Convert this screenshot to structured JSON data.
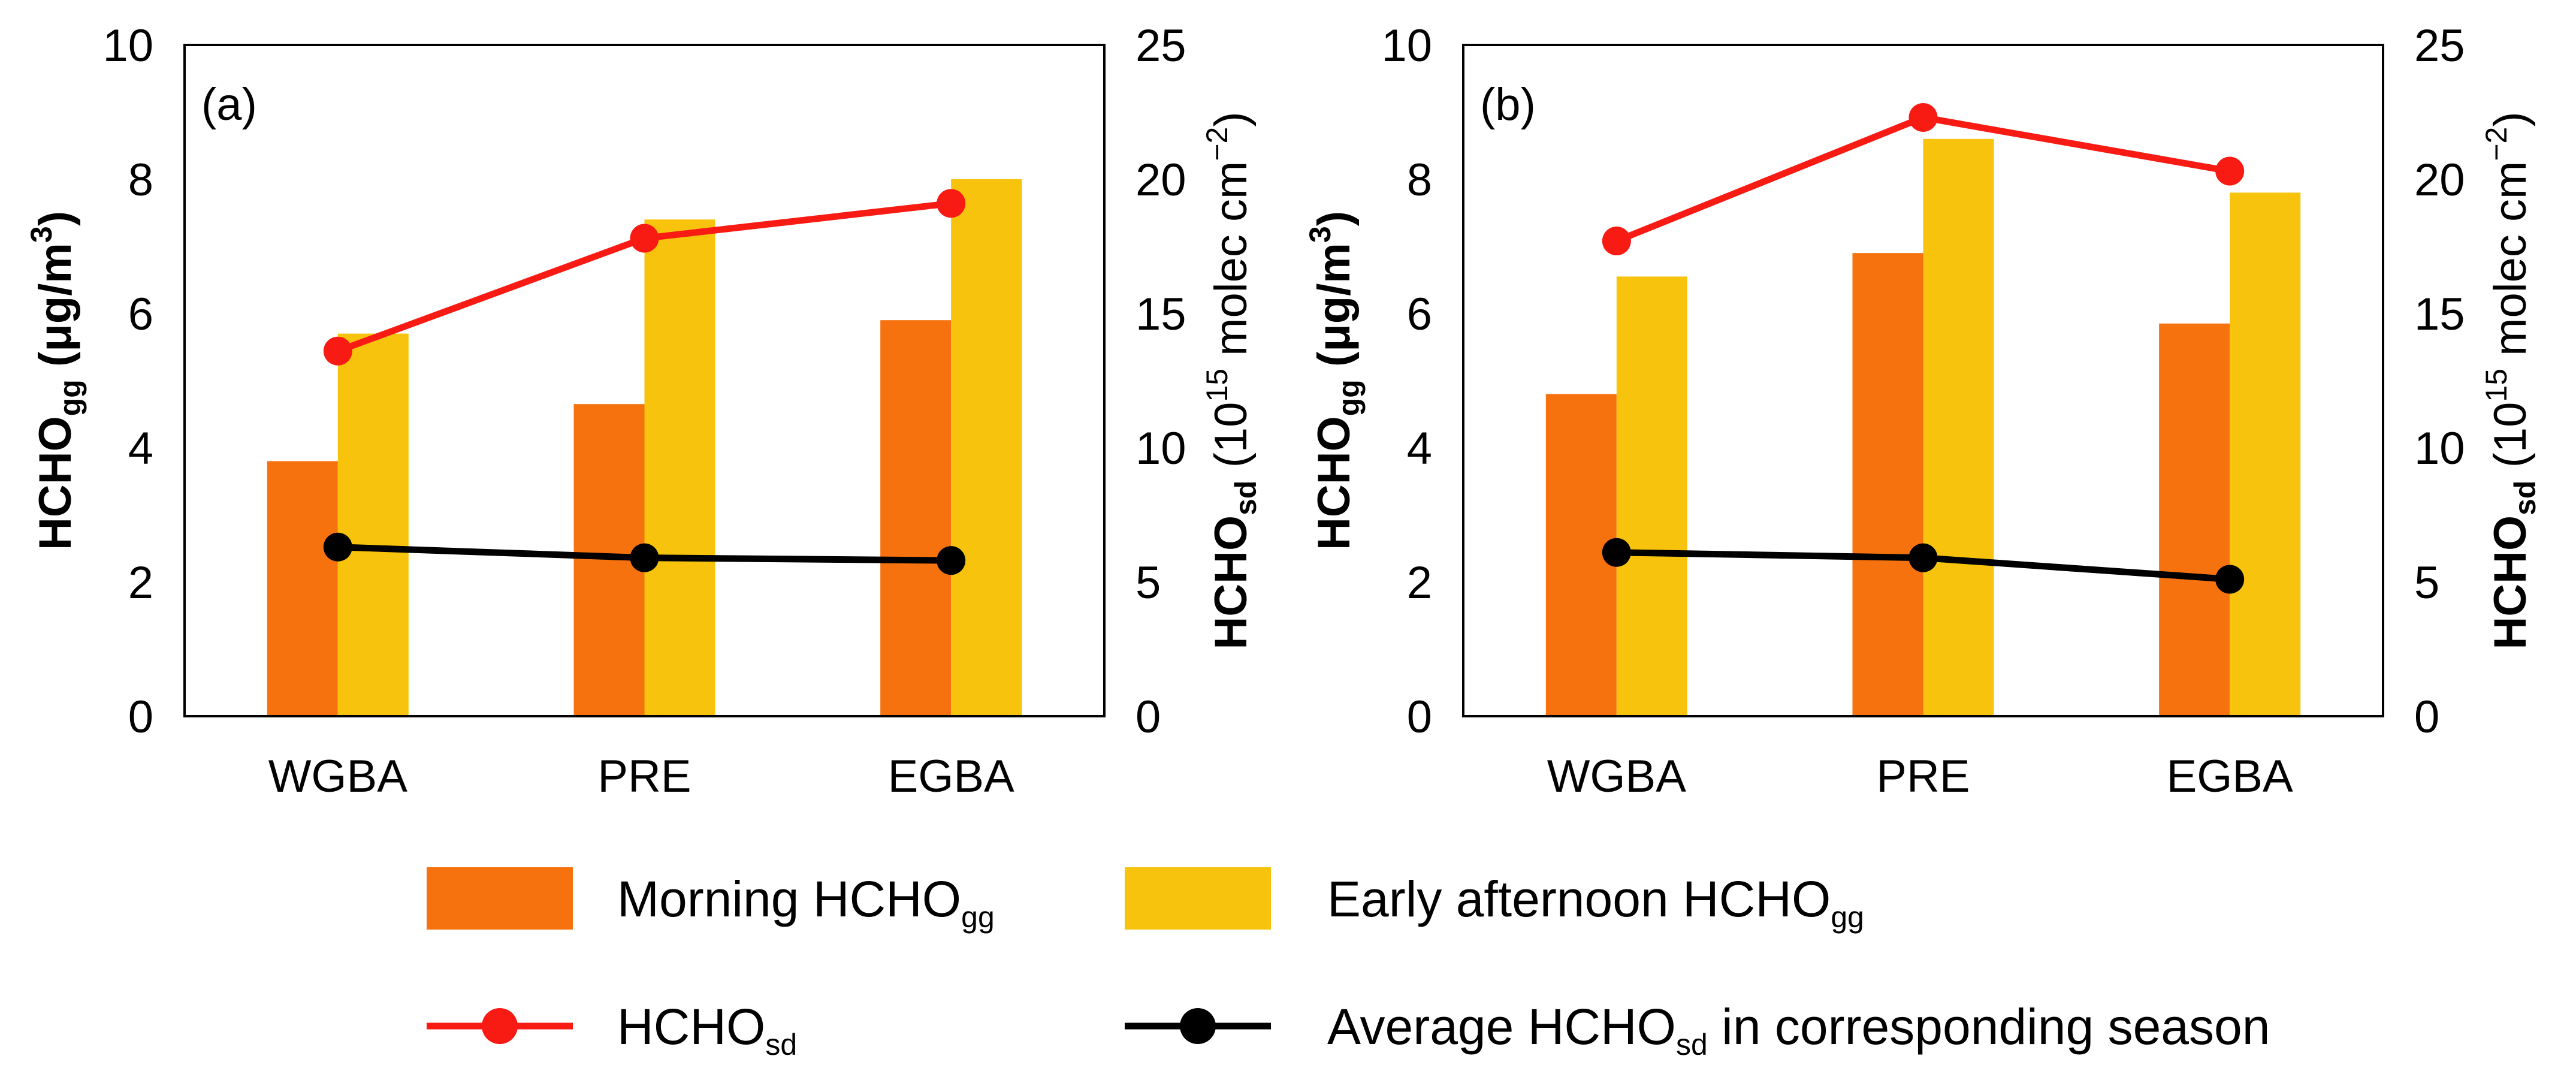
{
  "chart_data": [
    {
      "type": "bar+line",
      "panel_label": "(a)",
      "categories": [
        "WGBA",
        "PRE",
        "EGBA"
      ],
      "left_axis": {
        "label": "HCHO",
        "label_sub": "gg",
        "label_unit_pre": " (μg/m",
        "label_unit_sup": "3",
        "label_unit_post": ")",
        "ylim": [
          0,
          10
        ],
        "ticks": [
          0,
          2,
          4,
          6,
          8,
          10
        ]
      },
      "right_axis": {
        "label": "HCHO",
        "label_sub": "sd",
        "label_unit_pre": "  (10",
        "label_unit_sup": "15",
        "label_unit_post": " molec cm",
        "label_unit_sup2": "−2",
        "label_unit_end": ")",
        "ylim": [
          0,
          25
        ],
        "ticks": [
          0,
          5,
          10,
          15,
          20,
          25
        ]
      },
      "series": [
        {
          "name": "Morning HCHOgg",
          "kind": "bar",
          "axis": "left",
          "values": [
            3.8,
            4.65,
            5.9
          ]
        },
        {
          "name": "Early afternoon HCHOgg",
          "kind": "bar",
          "axis": "left",
          "values": [
            5.7,
            7.4,
            8.0
          ]
        },
        {
          "name": "HCHOsd",
          "kind": "line",
          "axis": "right",
          "values": [
            13.6,
            17.8,
            19.1
          ]
        },
        {
          "name": "Average HCHOsd in corresponding season",
          "kind": "line",
          "axis": "right",
          "values": [
            6.3,
            5.9,
            5.8
          ]
        }
      ]
    },
    {
      "type": "bar+line",
      "panel_label": "(b)",
      "categories": [
        "WGBA",
        "PRE",
        "EGBA"
      ],
      "left_axis": {
        "label": "HCHO",
        "label_sub": "gg",
        "label_unit_pre": " (μg/m",
        "label_unit_sup": "3",
        "label_unit_post": ")",
        "ylim": [
          0,
          10
        ],
        "ticks": [
          0,
          2,
          4,
          6,
          8,
          10
        ]
      },
      "right_axis": {
        "label": "HCHO",
        "label_sub": "sd",
        "label_unit_pre": "  (10",
        "label_unit_sup": "15",
        "label_unit_post": " molec cm",
        "label_unit_sup2": "−2",
        "label_unit_end": ")",
        "ylim": [
          0,
          25
        ],
        "ticks": [
          0,
          5,
          10,
          15,
          20,
          25
        ]
      },
      "series": [
        {
          "name": "Morning HCHOgg",
          "kind": "bar",
          "axis": "left",
          "values": [
            4.8,
            6.9,
            5.85
          ]
        },
        {
          "name": "Early afternoon HCHOgg",
          "kind": "bar",
          "axis": "left",
          "values": [
            6.55,
            8.6,
            7.8
          ]
        },
        {
          "name": "HCHOsd",
          "kind": "line",
          "axis": "right",
          "values": [
            17.7,
            22.3,
            20.3
          ]
        },
        {
          "name": "Average HCHOsd in corresponding season",
          "kind": "line",
          "axis": "right",
          "values": [
            6.1,
            5.9,
            5.1
          ]
        }
      ]
    }
  ],
  "legend": [
    {
      "kind": "bar",
      "text": "Morning HCHO",
      "sub": "gg",
      "after": "",
      "color": "#F5720F"
    },
    {
      "kind": "bar",
      "text": "Early afternoon HCHO",
      "sub": "gg",
      "after": "",
      "color": "#F7C30D"
    },
    {
      "kind": "line",
      "text": "HCHO",
      "sub": "sd",
      "after": "",
      "color": "#F81B14"
    },
    {
      "kind": "line",
      "text": "Average HCHO",
      "sub": "sd",
      "after": " in corresponding season",
      "color": "#000000"
    }
  ],
  "colors": {
    "morning": "#F5720F",
    "afternoon": "#F7C30D",
    "sd": "#F81B14",
    "avg": "#000000"
  }
}
